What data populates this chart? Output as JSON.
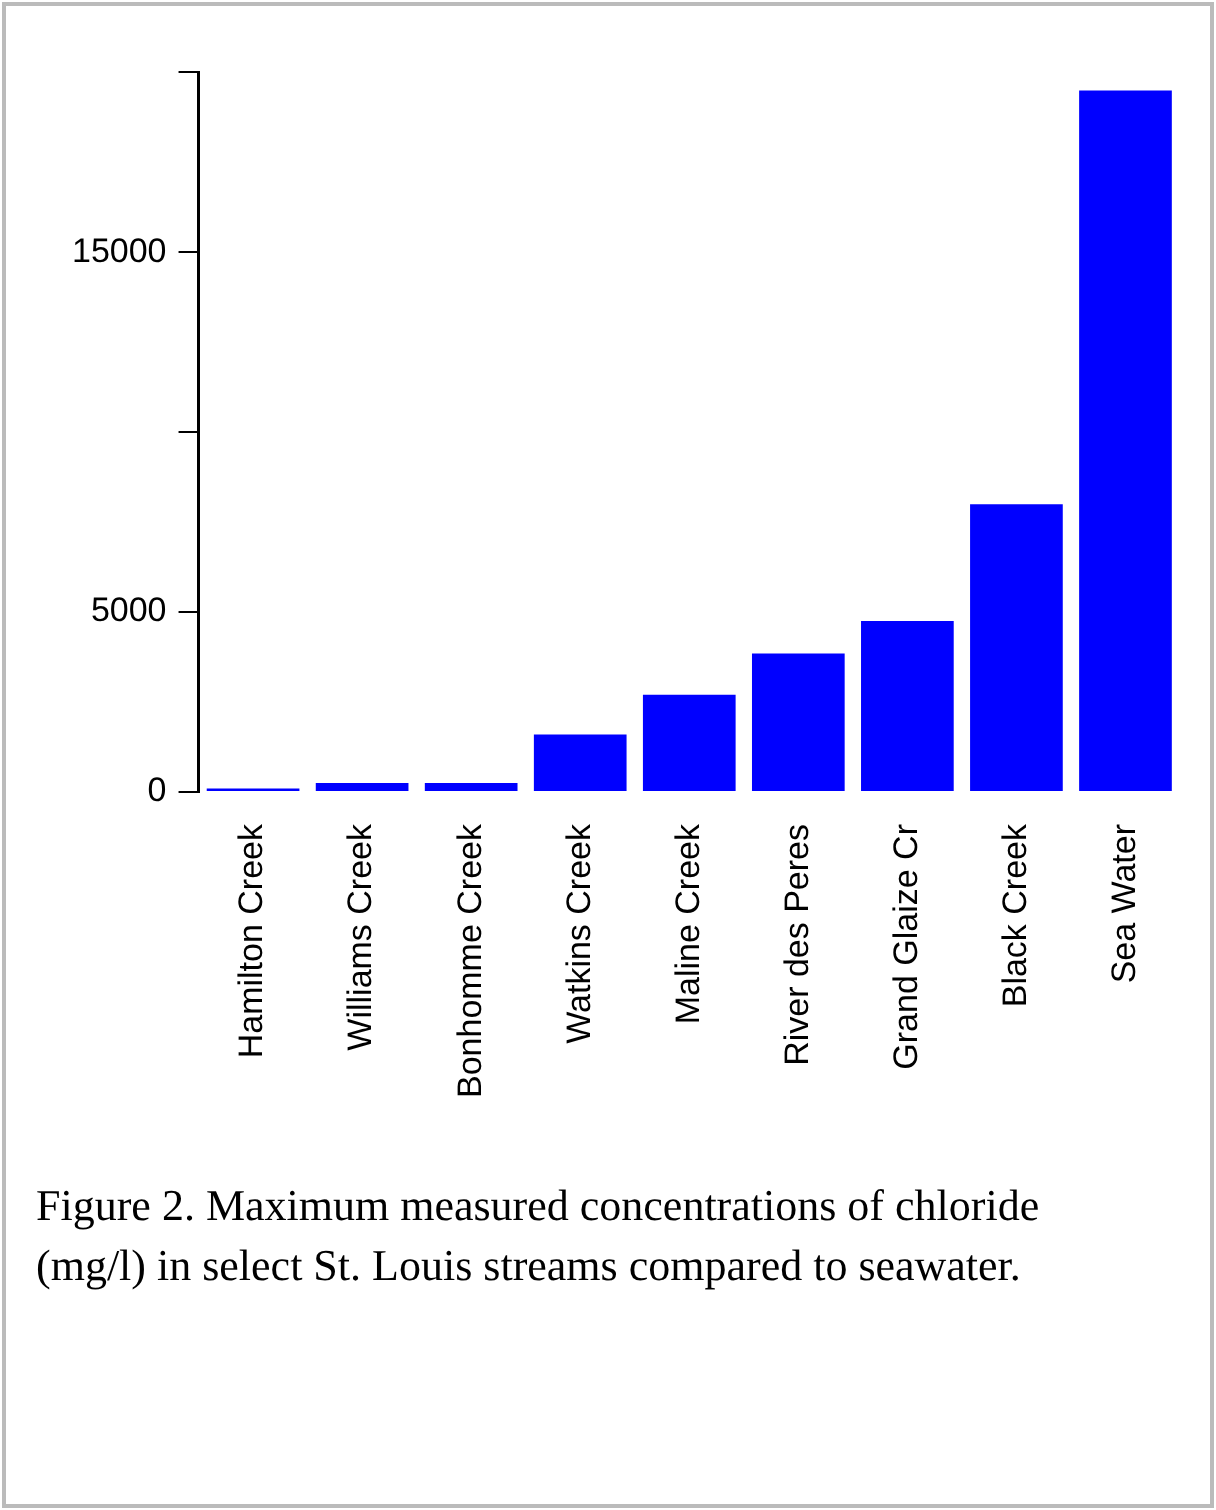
{
  "chart_data": {
    "type": "bar",
    "categories": [
      "Hamilton Creek",
      "Williams Creek",
      "Bonhomme Creek",
      "Watkins Creek",
      "Maline Creek",
      "River des Peres",
      "Grand Glaize Cr",
      "Black Creek",
      "Sea Water"
    ],
    "values": [
      100,
      250,
      250,
      1600,
      2700,
      3850,
      4750,
      8000,
      19500
    ],
    "color": "#0000ff",
    "ylim": [
      0,
      20000
    ],
    "yticks": [
      0,
      5000,
      {
        "value": 10000,
        "label": null
      },
      15000,
      {
        "value": 20000,
        "label": null
      }
    ],
    "grid": false,
    "legend": false,
    "annotations": [
      "Figure 2.  Maximum measured concentrations of chloride (mg/l) in select St. Louis streams compared to seawater."
    ]
  }
}
